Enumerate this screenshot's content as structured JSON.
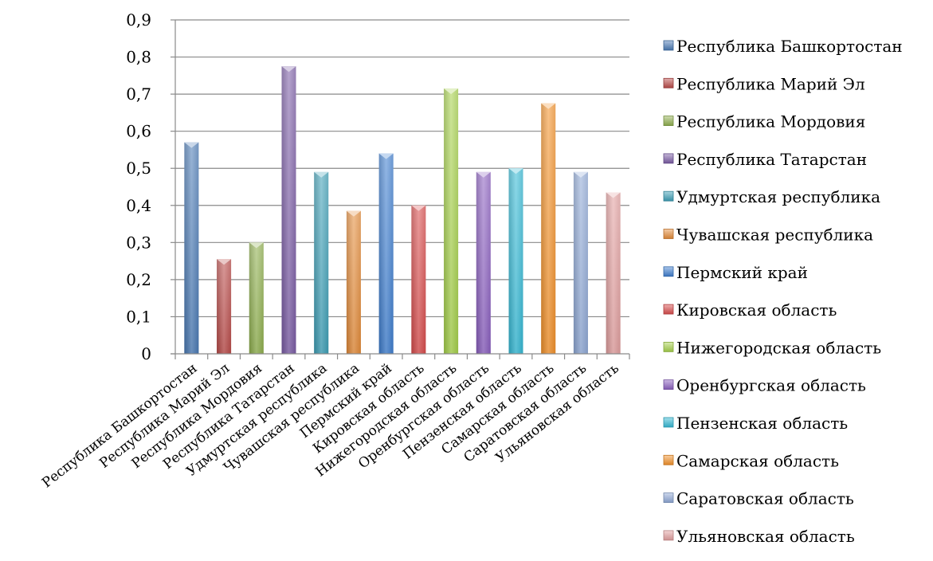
{
  "chart_data": {
    "type": "bar",
    "title": "",
    "xlabel": "",
    "ylabel": "",
    "ylim": [
      0,
      0.9
    ],
    "y_ticks": [
      "0",
      "0,1",
      "0,2",
      "0,3",
      "0,4",
      "0,5",
      "0,6",
      "0,7",
      "0,8",
      "0,9"
    ],
    "grid": true,
    "legend_position": "right",
    "categories": [
      "Республика Башкортостан",
      "Республика Марий Эл",
      "Республика Мордовия",
      "Республика Татарстан",
      "Удмуртская республика",
      "Чувашская республика",
      "Пермский край",
      "Кировская область",
      "Нижегородская область",
      "Оренбургская область",
      "Пензенская область",
      "Самарская область",
      "Саратовская область",
      "Ульяновская область"
    ],
    "values": [
      0.57,
      0.255,
      0.3,
      0.775,
      0.49,
      0.385,
      0.54,
      0.4,
      0.715,
      0.49,
      0.5,
      0.675,
      0.49,
      0.435
    ],
    "colors": [
      "#4a7ab5",
      "#b94a48",
      "#8fb04e",
      "#7b5ca6",
      "#3d9fb6",
      "#e48b39",
      "#3f7fd0",
      "#d94c4c",
      "#a5d14a",
      "#8b5fc0",
      "#35b9d5",
      "#f3922a",
      "#8fa9d6",
      "#e3a0a0"
    ]
  }
}
